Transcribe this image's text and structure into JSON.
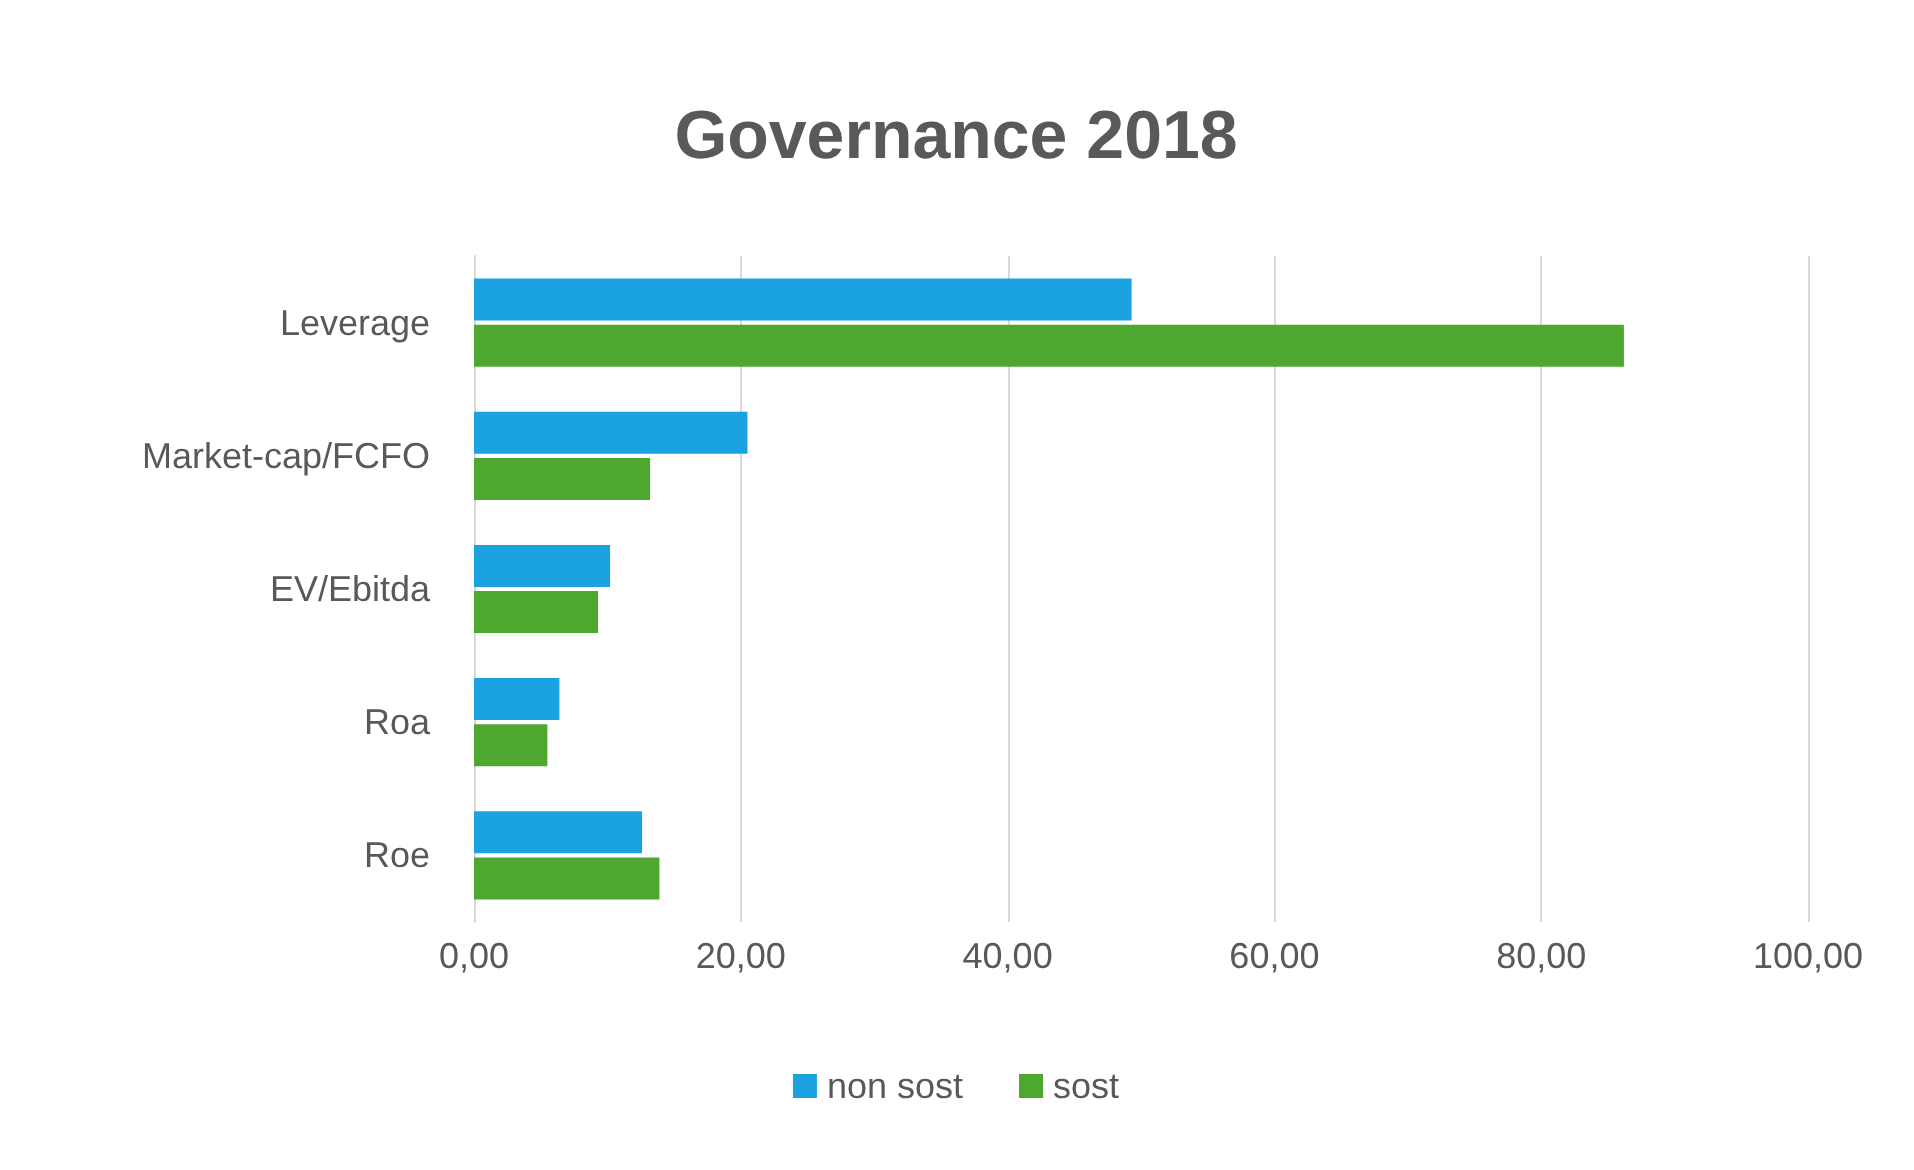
{
  "chart_data": {
    "type": "bar",
    "orientation": "horizontal",
    "title": "Governance 2018",
    "categories": [
      "Leverage",
      "Market-cap/FCFO",
      "EV/Ebitda",
      "Roa",
      "Roe"
    ],
    "series": [
      {
        "name": "non sost",
        "color": "#1aa3e0",
        "values": [
          49.3,
          20.5,
          10.2,
          6.4,
          12.6
        ]
      },
      {
        "name": "sost",
        "color": "#4ea72e",
        "values": [
          86.2,
          13.2,
          9.3,
          5.5,
          13.9
        ]
      }
    ],
    "xlim": [
      0,
      100
    ],
    "xticks": [
      {
        "value": 0,
        "label": "0,00"
      },
      {
        "value": 20,
        "label": "20,00"
      },
      {
        "value": 40,
        "label": "40,00"
      },
      {
        "value": 60,
        "label": "60,00"
      },
      {
        "value": 80,
        "label": "80,00"
      },
      {
        "value": 100,
        "label": "100,00"
      }
    ],
    "grid": "x",
    "legend": "bottom"
  }
}
